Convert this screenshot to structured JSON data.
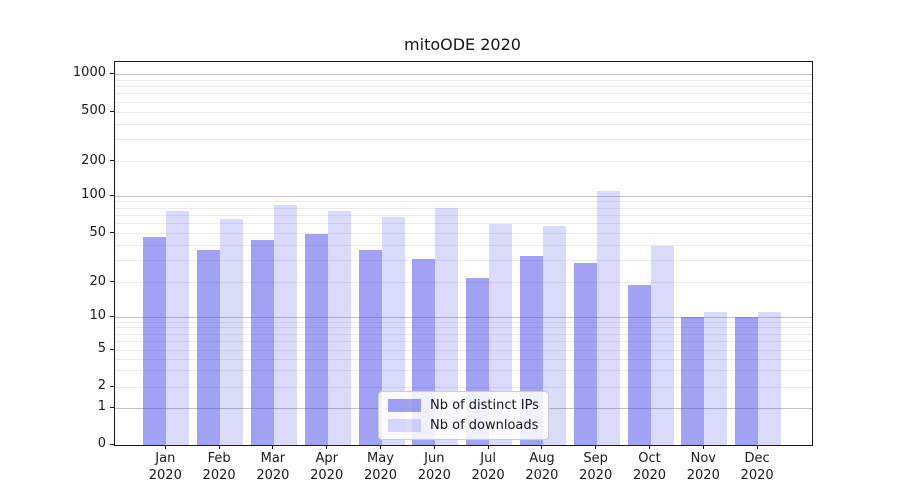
{
  "title": {
    "text": "mitoODE 2020"
  },
  "chart_data": {
    "type": "bar",
    "title": "mitoODE 2020",
    "categories": [
      "Jan 2020",
      "Feb 2020",
      "Mar 2020",
      "Apr 2020",
      "May 2020",
      "Jun 2020",
      "Jul 2020",
      "Aug 2020",
      "Sep 2020",
      "Oct 2020",
      "Nov 2020",
      "Dec 2020"
    ],
    "x_tick_months": [
      "Jan",
      "Feb",
      "Mar",
      "Apr",
      "May",
      "Jun",
      "Jul",
      "Aug",
      "Sep",
      "Oct",
      "Nov",
      "Dec"
    ],
    "x_tick_year": "2020",
    "series": [
      {
        "name": "Nb of distinct IPs",
        "color": "rgba(70,70,235,0.5)",
        "values": [
          47,
          37,
          44,
          50,
          37,
          31,
          22,
          33,
          29,
          19,
          10,
          10
        ]
      },
      {
        "name": "Nb of downloads",
        "color": "rgba(70,70,235,0.2)",
        "values": [
          76,
          66,
          85,
          76,
          68,
          80,
          60,
          57,
          110,
          40,
          11,
          11
        ]
      }
    ],
    "xlabel": "",
    "ylabel": "",
    "yscale": "symlog",
    "ylim": [
      0,
      1280
    ],
    "yticks": [
      0,
      1,
      2,
      5,
      10,
      20,
      50,
      100,
      200,
      500,
      1000
    ],
    "ytick_major": [
      1,
      10,
      100,
      1000
    ],
    "grid": "both",
    "legend_position": "lower center"
  },
  "colors": {
    "major_grid": "#c3c3c3",
    "minor_grid": "#ebebeb",
    "spine": "#1a1a1a",
    "text": "#1a1a1a"
  }
}
